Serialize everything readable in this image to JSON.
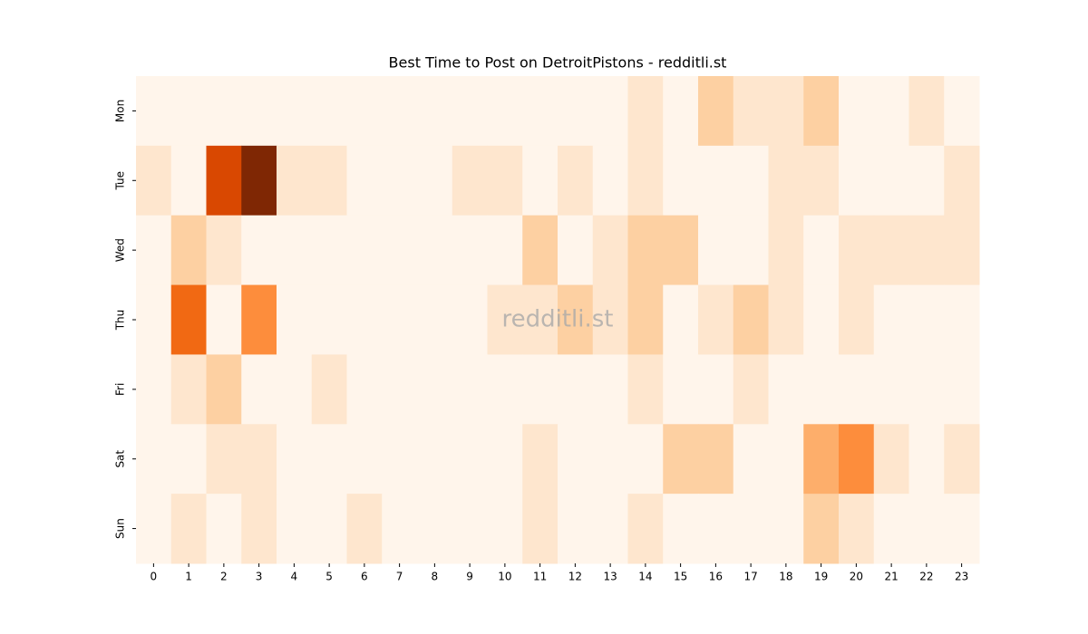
{
  "chart_data": {
    "type": "heatmap",
    "title": "Best Time to Post on DetroitPistons - redditli.st",
    "watermark": "redditli.st",
    "categories": [
      0,
      1,
      2,
      3,
      4,
      5,
      6,
      7,
      8,
      9,
      10,
      11,
      12,
      13,
      14,
      15,
      16,
      17,
      18,
      19,
      20,
      21,
      22,
      23
    ],
    "rows": [
      "Mon",
      "Tue",
      "Wed",
      "Thu",
      "Fri",
      "Sat",
      "Sun"
    ],
    "values": [
      [
        0,
        0,
        0,
        0,
        0,
        0,
        0,
        0,
        0,
        0,
        0,
        0,
        0,
        0,
        1,
        0,
        2,
        1,
        1,
        2,
        0,
        0,
        1,
        0
      ],
      [
        1,
        0,
        6,
        8,
        1,
        1,
        0,
        0,
        0,
        1,
        1,
        0,
        1,
        0,
        1,
        0,
        0,
        0,
        1,
        1,
        0,
        0,
        0,
        1
      ],
      [
        0,
        2,
        1,
        0,
        0,
        0,
        0,
        0,
        0,
        0,
        0,
        2,
        0,
        1,
        2,
        2,
        0,
        0,
        1,
        0,
        1,
        1,
        1,
        1
      ],
      [
        0,
        5,
        0,
        4,
        0,
        0,
        0,
        0,
        0,
        0,
        1,
        1,
        2,
        1,
        2,
        0,
        1,
        2,
        1,
        0,
        1,
        0,
        0,
        0
      ],
      [
        0,
        1,
        2,
        0,
        0,
        1,
        0,
        0,
        0,
        0,
        0,
        0,
        0,
        0,
        1,
        0,
        0,
        1,
        0,
        0,
        0,
        0,
        0,
        0
      ],
      [
        0,
        0,
        1,
        1,
        0,
        0,
        0,
        0,
        0,
        0,
        0,
        1,
        0,
        0,
        0,
        2,
        2,
        0,
        0,
        3,
        4,
        1,
        0,
        1
      ],
      [
        0,
        1,
        0,
        1,
        0,
        0,
        1,
        0,
        0,
        0,
        0,
        1,
        0,
        0,
        1,
        0,
        0,
        0,
        0,
        2,
        1,
        0,
        0,
        0
      ]
    ],
    "colormap": [
      "#fff5eb",
      "#fee6ce",
      "#fdd0a2",
      "#fdae6b",
      "#fd8d3c",
      "#f16913",
      "#d94801",
      "#a63603",
      "#7f2704"
    ]
  }
}
